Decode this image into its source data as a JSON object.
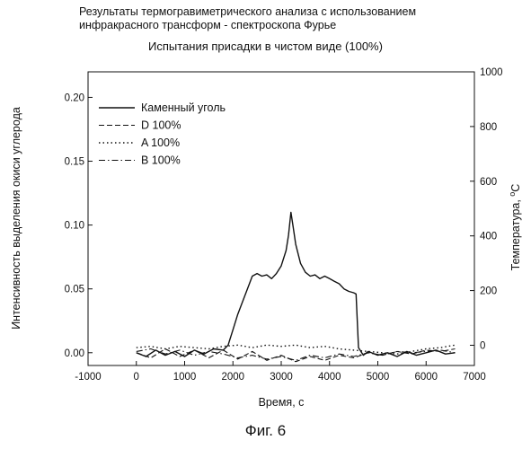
{
  "header": {
    "title_line1": "Результаты термогравиметрического анализа с использованием",
    "title_line2": "инфракрасного трансформ - спектроскопа Фурье"
  },
  "figure_caption": "Фиг. 6",
  "chart_data": {
    "type": "line",
    "title": "Испытания присадки в чистом виде (100%)",
    "xlabel": "Время, с",
    "ylabel": "Интенсивность выделения окиси углерода",
    "y2label": "Температура, °C",
    "xlim": [
      -1000,
      7000
    ],
    "ylim": [
      -0.01,
      0.22
    ],
    "y2lim": [
      -74,
      1000
    ],
    "x_ticks": [
      -1000,
      0,
      1000,
      2000,
      3000,
      4000,
      5000,
      6000,
      7000
    ],
    "x_tick_labels": [
      "-1000",
      "0",
      "1000",
      "2000",
      "3000",
      "4000",
      "5000",
      "6000",
      "7000"
    ],
    "y_ticks": [
      0.0,
      0.05,
      0.1,
      0.15,
      0.2
    ],
    "y_tick_labels": [
      "0.00",
      "0.05",
      "0.10",
      "0.15",
      "0.20"
    ],
    "y2_ticks": [
      0,
      200,
      400,
      600,
      800,
      1000
    ],
    "y2_tick_labels": [
      "0",
      "200",
      "400",
      "600",
      "800",
      "1000"
    ],
    "legend_position": "top-left",
    "grid": false,
    "series": [
      {
        "name": "Каменный уголь",
        "style": "solid",
        "x": [
          0,
          200,
          400,
          600,
          800,
          1000,
          1200,
          1400,
          1600,
          1800,
          1900,
          2000,
          2100,
          2200,
          2300,
          2400,
          2500,
          2600,
          2700,
          2800,
          2900,
          3000,
          3100,
          3150,
          3200,
          3250,
          3300,
          3400,
          3500,
          3600,
          3700,
          3800,
          3900,
          4000,
          4100,
          4200,
          4300,
          4400,
          4500,
          4550,
          4600,
          4700,
          4800,
          5000,
          5200,
          5400,
          5600,
          5800,
          6000,
          6200,
          6400,
          6600
        ],
        "values": [
          0.0,
          -0.003,
          0.002,
          -0.002,
          0.001,
          -0.003,
          0.002,
          -0.001,
          0.003,
          0.002,
          0.006,
          0.018,
          0.03,
          0.04,
          0.05,
          0.06,
          0.062,
          0.06,
          0.061,
          0.058,
          0.062,
          0.068,
          0.08,
          0.092,
          0.11,
          0.098,
          0.085,
          0.07,
          0.063,
          0.06,
          0.061,
          0.058,
          0.06,
          0.058,
          0.056,
          0.054,
          0.05,
          0.048,
          0.047,
          0.046,
          0.004,
          -0.002,
          0.001,
          -0.002,
          0.0,
          -0.003,
          0.001,
          -0.002,
          0.0,
          0.002,
          -0.001,
          0.0
        ]
      },
      {
        "name": "D 100%",
        "style": "dashed",
        "x": [
          0,
          300,
          600,
          900,
          1200,
          1500,
          1800,
          2100,
          2400,
          2700,
          3000,
          3300,
          3600,
          3900,
          4200,
          4500,
          4800,
          5100,
          5400,
          5700,
          6000,
          6300,
          6600
        ],
        "values": [
          0.0,
          -0.004,
          0.003,
          -0.003,
          0.002,
          -0.004,
          0.002,
          -0.005,
          0.001,
          -0.006,
          -0.002,
          -0.007,
          -0.003,
          -0.006,
          -0.002,
          -0.004,
          0.0,
          -0.002,
          0.001,
          -0.001,
          0.002,
          0.001,
          0.003
        ]
      },
      {
        "name": "A 100%",
        "style": "dotted",
        "x": [
          0,
          300,
          600,
          900,
          1200,
          1500,
          1800,
          2100,
          2400,
          2700,
          3000,
          3300,
          3600,
          3900,
          4200,
          4500,
          4800,
          5100,
          5400,
          5700,
          6000,
          6300,
          6600
        ],
        "values": [
          0.004,
          0.005,
          0.003,
          0.005,
          0.004,
          0.003,
          0.005,
          0.006,
          0.004,
          0.006,
          0.005,
          0.006,
          0.004,
          0.005,
          0.003,
          0.002,
          0.001,
          0.0,
          -0.001,
          0.001,
          0.003,
          0.004,
          0.006
        ]
      },
      {
        "name": "B 100%",
        "style": "dashdot",
        "x": [
          0,
          300,
          600,
          900,
          1200,
          1500,
          1800,
          2100,
          2400,
          2700,
          3000,
          3300,
          3600,
          3900,
          4200,
          4500,
          4800,
          5100,
          5400,
          5700,
          6000,
          6300,
          6600
        ],
        "values": [
          0.001,
          0.003,
          -0.001,
          0.002,
          -0.002,
          0.001,
          -0.001,
          -0.004,
          -0.002,
          -0.005,
          -0.003,
          -0.006,
          -0.002,
          -0.004,
          -0.001,
          -0.003,
          0.0,
          -0.002,
          0.001,
          0.0,
          0.001,
          0.002,
          0.0
        ]
      }
    ]
  }
}
